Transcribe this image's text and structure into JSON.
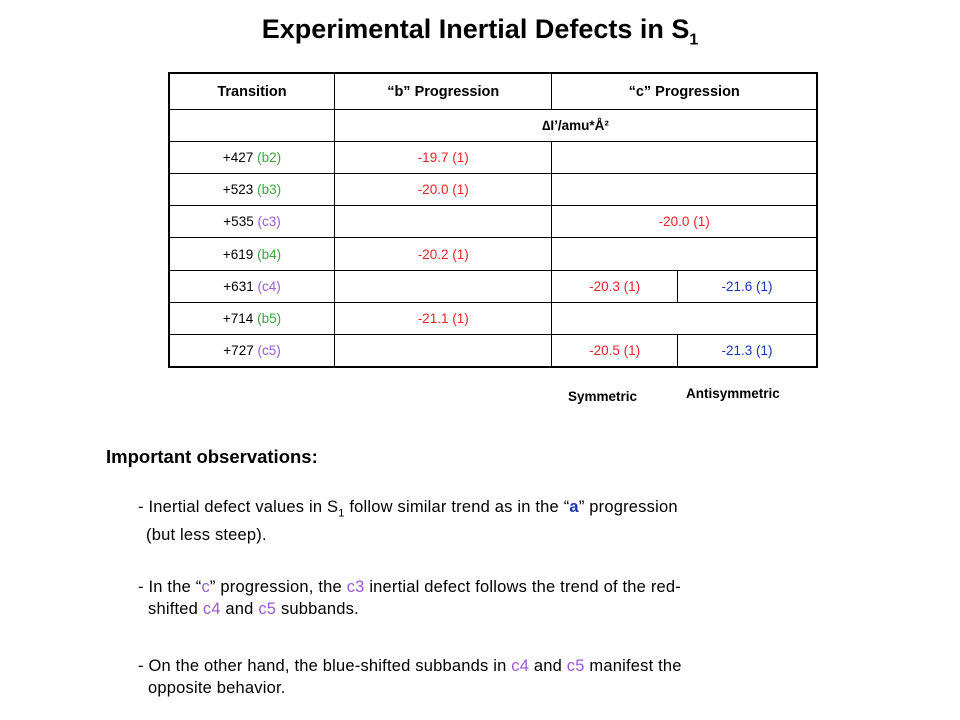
{
  "title": {
    "text": "Experimental Inertial Defects in S",
    "sub": "1"
  },
  "table": {
    "headers": {
      "transition": "Transition",
      "b": "“b” Progression",
      "c": "“c” Progression"
    },
    "unit": "∆I’/amu*Å²",
    "rows": [
      {
        "num": "+427",
        "label": "(b2)",
        "b": "-19.7 (1)"
      },
      {
        "num": "+523",
        "label": "(b3)",
        "b": "-20.0 (1)"
      },
      {
        "num": "+535",
        "label": "(c3)",
        "c": "-20.0 (1)"
      },
      {
        "num": "+619",
        "label": "(b4)",
        "b": "-20.2 (1)"
      },
      {
        "num": "+631",
        "label": "(c4)",
        "sym": "-20.3 (1)",
        "anti": "-21.6 (1)"
      },
      {
        "num": "+714",
        "label": "(b5)",
        "b": "-21.1 (1)"
      },
      {
        "num": "+727",
        "label": "(c5)",
        "sym": "-20.5 (1)",
        "anti": "-21.3 (1)"
      }
    ]
  },
  "labels": {
    "symmetric": "Symmetric",
    "antisymmetric": "Antisymmetric"
  },
  "observations": {
    "heading": "Important observations:",
    "obs1": {
      "part1": "- Inertial defect values in S",
      "sub": "1",
      "part2": " follow similar trend as in the “",
      "a": "a",
      "part3": "” progression",
      "line2": "(but less steep)."
    },
    "obs2": {
      "part1": "- In the “",
      "c": "c",
      "part2": "” progression, the ",
      "c3": "c3",
      "part3": " inertial defect follows the trend of the red-",
      "line2a": "shifted ",
      "c4": "c4",
      "line2b": " and ",
      "c5": "c5",
      "line2c": " subbands."
    },
    "obs3": {
      "part1": "- On the other hand, the blue-shifted subbands in ",
      "c4": "c4",
      "part2": " and ",
      "c5": "c5",
      "part3": " manifest the",
      "line2": "opposite behavior."
    }
  },
  "colors": {
    "b_label": "#3fa23f",
    "c_label": "#9b59d4",
    "red_value": "#e8232a",
    "blue_value": "#1c35b5"
  }
}
